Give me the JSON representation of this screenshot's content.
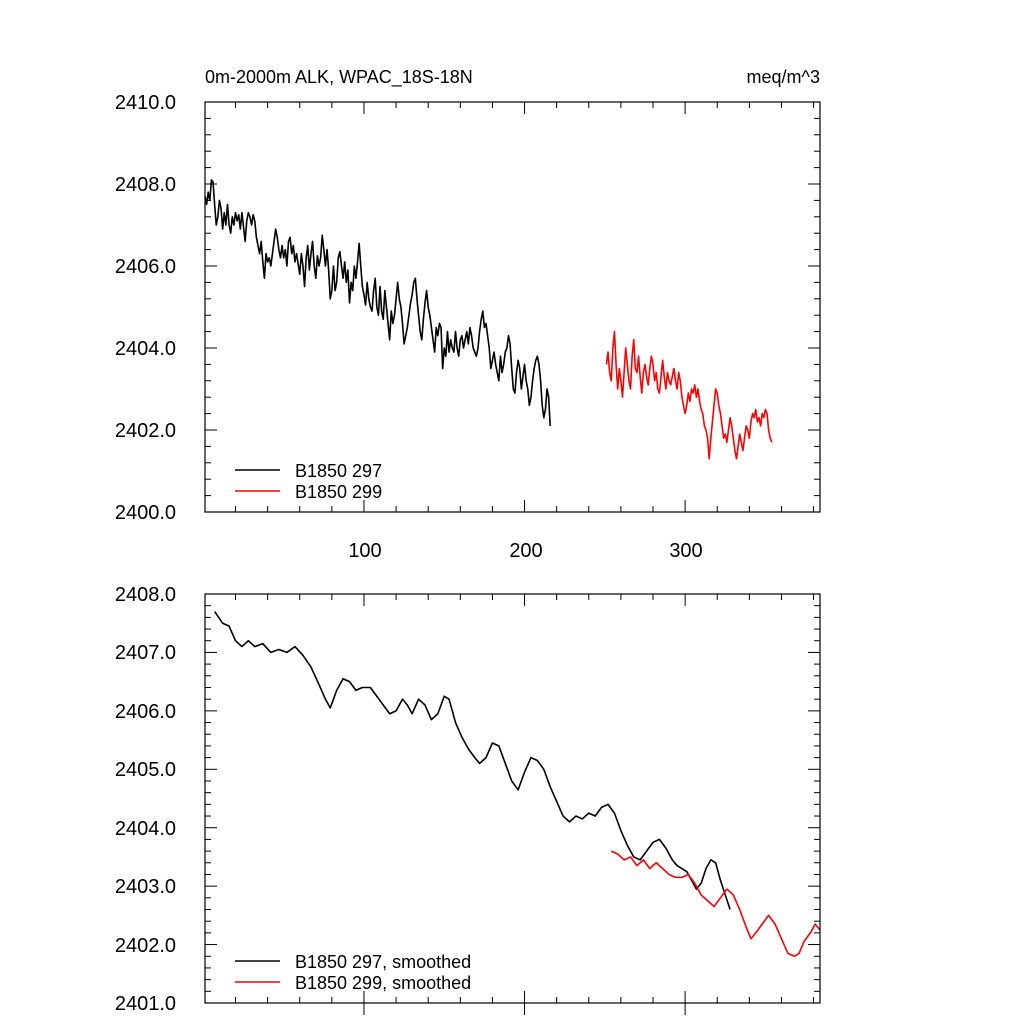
{
  "chart_data": [
    {
      "type": "line",
      "title_left": "0m-2000m ALK, WPAC_18S-18N",
      "title_right": "meq/m^3",
      "xlim": [
        1,
        384
      ],
      "ylim": [
        2400,
        2410
      ],
      "xticks": [
        100,
        200,
        300
      ],
      "xtick_labels": [
        "100",
        "200",
        "300"
      ],
      "yticks": [
        2400,
        2402,
        2404,
        2406,
        2408,
        2410
      ],
      "ytick_labels": [
        "2400.0",
        "2402.0",
        "2404.0",
        "2406.0",
        "2408.0",
        "2410.0"
      ],
      "legend_position": "bottom-left",
      "series": [
        {
          "name": "B1850 297",
          "color": "#000000",
          "x_start": 1,
          "values": [
            2407.7,
            2407.5,
            2407.8,
            2407.6,
            2408.1,
            2408.05,
            2407.5,
            2407.0,
            2407.2,
            2407.6,
            2407.4,
            2406.9,
            2407.3,
            2407.0,
            2407.5,
            2407.0,
            2406.8,
            2407.2,
            2407.0,
            2407.3,
            2407.1,
            2407.25,
            2406.9,
            2407.3,
            2406.95,
            2406.6,
            2407.1,
            2407.3,
            2407.2,
            2407.0,
            2407.25,
            2407.1,
            2406.7,
            2406.5,
            2406.3,
            2406.6,
            2406.1,
            2405.7,
            2406.3,
            2406.1,
            2406.2,
            2406.0,
            2406.3,
            2406.6,
            2406.9,
            2406.7,
            2406.4,
            2406.2,
            2406.5,
            2406.2,
            2406.4,
            2406.0,
            2406.6,
            2406.7,
            2406.3,
            2406.5,
            2406.1,
            2406.3,
            2406.05,
            2405.8,
            2406.3,
            2406.0,
            2405.5,
            2406.2,
            2406.5,
            2405.9,
            2406.3,
            2406.6,
            2406.0,
            2405.7,
            2406.25,
            2406.0,
            2406.2,
            2406.75,
            2406.4,
            2406.0,
            2406.4,
            2405.9,
            2405.2,
            2405.4,
            2406.0,
            2405.4,
            2405.6,
            2406.2,
            2406.35,
            2406.0,
            2405.7,
            2406.1,
            2405.6,
            2405.9,
            2405.1,
            2405.6,
            2405.4,
            2406.0,
            2405.7,
            2406.1,
            2406.55,
            2406.0,
            2405.5,
            2405.3,
            2405.05,
            2405.6,
            2405.2,
            2405.0,
            2404.9,
            2405.4,
            2405.7,
            2405.0,
            2404.8,
            2405.5,
            2404.9,
            2404.7,
            2405.4,
            2405.0,
            2404.6,
            2404.2,
            2404.9,
            2404.6,
            2404.8,
            2405.2,
            2405.6,
            2405.2,
            2405.0,
            2404.6,
            2404.1,
            2404.3,
            2404.5,
            2404.8,
            2405.1,
            2405.3,
            2405.6,
            2405.7,
            2405.2,
            2404.8,
            2404.4,
            2404.2,
            2404.7,
            2405.1,
            2405.4,
            2405.0,
            2404.8,
            2404.5,
            2404.2,
            2403.9,
            2404.5,
            2404.3,
            2404.6,
            2404.5,
            2403.5,
            2404.0,
            2403.8,
            2404.4,
            2403.9,
            2404.2,
            2404.0,
            2403.9,
            2404.4,
            2404.0,
            2403.8,
            2404.2,
            2404.3,
            2404.0,
            2404.2,
            2404.4,
            2404.1,
            2404.5,
            2404.3,
            2404.0,
            2403.9,
            2403.8,
            2404.0,
            2404.4,
            2404.7,
            2404.9,
            2404.5,
            2404.6,
            2404.3,
            2404.0,
            2403.5,
            2403.7,
            2403.9,
            2403.6,
            2403.4,
            2403.2,
            2403.8,
            2403.4,
            2403.6,
            2403.9,
            2404.0,
            2404.3,
            2404.1,
            2403.5,
            2403.0,
            2402.9,
            2403.4,
            2403.7,
            2403.5,
            2403.0,
            2403.3,
            2403.6,
            2403.2,
            2403.0,
            2402.6,
            2402.8,
            2403.2,
            2403.5,
            2403.7,
            2403.8,
            2403.6,
            2403.2,
            2402.6,
            2402.3,
            2402.5,
            2403.0,
            2402.8,
            2402.1
          ]
        },
        {
          "name": "B1850 299",
          "color": "#ff0000",
          "x_start": 251,
          "values": [
            2403.6,
            2403.9,
            2403.4,
            2403.2,
            2404.0,
            2404.4,
            2403.6,
            2403.0,
            2403.5,
            2403.2,
            2402.8,
            2403.4,
            2404.0,
            2403.6,
            2403.2,
            2403.0,
            2403.8,
            2404.2,
            2403.5,
            2403.4,
            2403.8,
            2403.3,
            2402.9,
            2403.4,
            2403.6,
            2403.3,
            2403.1,
            2403.5,
            2403.8,
            2403.6,
            2403.2,
            2403.4,
            2403.0,
            2402.9,
            2403.3,
            2403.7,
            2403.3,
            2403.0,
            2403.4,
            2403.2,
            2403.1,
            2403.3,
            2403.5,
            2403.2,
            2403.0,
            2403.4,
            2403.2,
            2402.8,
            2402.6,
            2402.4,
            2402.6,
            2402.9,
            2402.7,
            2403.0,
            2402.9,
            2403.1,
            2402.8,
            2403.0,
            2402.7,
            2402.5,
            2402.4,
            2402.1,
            2402.0,
            2401.8,
            2401.3,
            2401.8,
            2402.2,
            2402.6,
            2403.0,
            2402.9,
            2402.6,
            2402.4,
            2402.1,
            2401.8,
            2401.9,
            2401.7,
            2402.0,
            2402.3,
            2402.1,
            2401.8,
            2401.5,
            2401.3,
            2401.6,
            2401.9,
            2401.7,
            2401.5,
            2401.8,
            2402.1,
            2402.0,
            2401.8,
            2402.2,
            2402.4,
            2402.3,
            2402.5,
            2402.2,
            2402.3,
            2402.1,
            2402.4,
            2402.3,
            2402.5,
            2402.4,
            2402.0,
            2401.8,
            2401.7
          ]
        }
      ]
    },
    {
      "type": "line",
      "xlim": [
        1,
        384
      ],
      "ylim": [
        2401,
        2408
      ],
      "xticks": [
        100,
        200,
        300
      ],
      "yticks": [
        2401,
        2402,
        2403,
        2404,
        2405,
        2406,
        2407,
        2408
      ],
      "ytick_labels": [
        "2401.0",
        "2402.0",
        "2403.0",
        "2404.0",
        "2405.0",
        "2406.0",
        "2407.0",
        "2408.0"
      ],
      "legend_position": "bottom-left",
      "series": [
        {
          "name": "B1850 297, smoothed",
          "color": "#000000",
          "points": [
            [
              7,
              2407.7
            ],
            [
              12,
              2407.5
            ],
            [
              16,
              2407.45
            ],
            [
              20,
              2407.2
            ],
            [
              24,
              2407.1
            ],
            [
              28,
              2407.2
            ],
            [
              32,
              2407.1
            ],
            [
              37,
              2407.15
            ],
            [
              42,
              2407.0
            ],
            [
              47,
              2407.05
            ],
            [
              52,
              2407.0
            ],
            [
              57,
              2407.1
            ],
            [
              62,
              2406.95
            ],
            [
              67,
              2406.75
            ],
            [
              72,
              2406.45
            ],
            [
              76,
              2406.2
            ],
            [
              79,
              2406.05
            ],
            [
              83,
              2406.35
            ],
            [
              87,
              2406.55
            ],
            [
              91,
              2406.5
            ],
            [
              95,
              2406.35
            ],
            [
              99,
              2406.4
            ],
            [
              104,
              2406.4
            ],
            [
              108,
              2406.25
            ],
            [
              112,
              2406.1
            ],
            [
              116,
              2405.95
            ],
            [
              120,
              2406.0
            ],
            [
              124,
              2406.2
            ],
            [
              127,
              2406.1
            ],
            [
              130,
              2405.95
            ],
            [
              134,
              2406.2
            ],
            [
              138,
              2406.1
            ],
            [
              142,
              2405.85
            ],
            [
              146,
              2405.95
            ],
            [
              150,
              2406.25
            ],
            [
              153,
              2406.2
            ],
            [
              157,
              2405.8
            ],
            [
              161,
              2405.55
            ],
            [
              165,
              2405.35
            ],
            [
              169,
              2405.2
            ],
            [
              172,
              2405.1
            ],
            [
              176,
              2405.2
            ],
            [
              180,
              2405.45
            ],
            [
              184,
              2405.4
            ],
            [
              188,
              2405.1
            ],
            [
              192,
              2404.8
            ],
            [
              196,
              2404.65
            ],
            [
              200,
              2404.95
            ],
            [
              204,
              2405.2
            ],
            [
              208,
              2405.15
            ],
            [
              212,
              2405.0
            ],
            [
              216,
              2404.7
            ],
            [
              220,
              2404.45
            ],
            [
              224,
              2404.2
            ],
            [
              228,
              2404.1
            ],
            [
              232,
              2404.2
            ],
            [
              236,
              2404.15
            ],
            [
              240,
              2404.25
            ],
            [
              244,
              2404.2
            ],
            [
              248,
              2404.35
            ],
            [
              252,
              2404.4
            ],
            [
              256,
              2404.25
            ],
            [
              260,
              2403.95
            ],
            [
              264,
              2403.7
            ],
            [
              268,
              2403.5
            ],
            [
              272,
              2403.45
            ],
            [
              276,
              2403.6
            ],
            [
              280,
              2403.75
            ],
            [
              284,
              2403.8
            ],
            [
              288,
              2403.65
            ],
            [
              292,
              2403.45
            ],
            [
              295,
              2403.35
            ],
            [
              298,
              2403.3
            ],
            [
              301,
              2403.25
            ],
            [
              304,
              2403.1
            ],
            [
              307,
              2402.95
            ],
            [
              310,
              2403.05
            ],
            [
              313,
              2403.3
            ],
            [
              316,
              2403.45
            ],
            [
              319,
              2403.4
            ],
            [
              322,
              2403.1
            ],
            [
              325,
              2402.85
            ],
            [
              328,
              2402.6
            ]
          ]
        },
        {
          "name": "B1850 299, smoothed",
          "color": "#ff0000",
          "points": [
            [
              254,
              2403.6
            ],
            [
              258,
              2403.55
            ],
            [
              262,
              2403.45
            ],
            [
              266,
              2403.5
            ],
            [
              270,
              2403.35
            ],
            [
              274,
              2403.45
            ],
            [
              278,
              2403.3
            ],
            [
              282,
              2403.4
            ],
            [
              286,
              2403.3
            ],
            [
              290,
              2403.2
            ],
            [
              294,
              2403.15
            ],
            [
              298,
              2403.15
            ],
            [
              302,
              2403.2
            ],
            [
              306,
              2403.05
            ],
            [
              310,
              2402.85
            ],
            [
              314,
              2402.75
            ],
            [
              318,
              2402.65
            ],
            [
              322,
              2402.8
            ],
            [
              326,
              2402.95
            ],
            [
              330,
              2402.85
            ],
            [
              334,
              2402.6
            ],
            [
              338,
              2402.3
            ],
            [
              341,
              2402.1
            ],
            [
              344,
              2402.2
            ],
            [
              348,
              2402.35
            ],
            [
              352,
              2402.5
            ],
            [
              356,
              2402.35
            ],
            [
              360,
              2402.1
            ],
            [
              364,
              2401.85
            ],
            [
              368,
              2401.8
            ],
            [
              371,
              2401.85
            ],
            [
              374,
              2402.05
            ],
            [
              378,
              2402.2
            ],
            [
              381,
              2402.35
            ],
            [
              384,
              2402.25
            ]
          ]
        }
      ]
    }
  ]
}
